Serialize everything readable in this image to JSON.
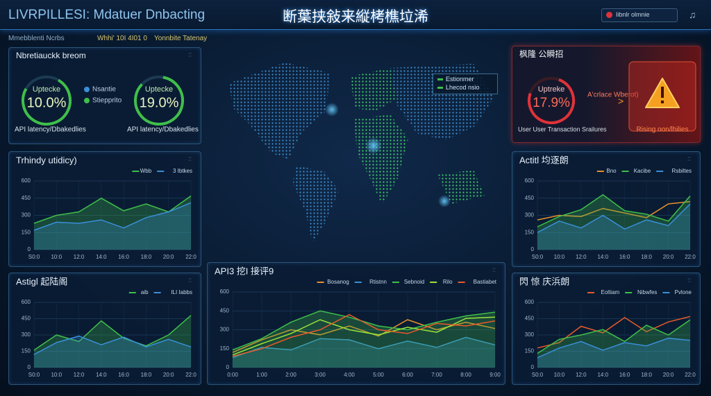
{
  "header": {
    "title": "LIVRPILLESI: Mdatuer Dnbacting",
    "center_title": "断葉挟敍来縦栲樵垃浠",
    "alert_label": "Iibnlr olmnie",
    "subtitles": [
      "Mmebblenti Ncrbs",
      "Whhi' 10I 4I01 0",
      "Yonnbite Tatenay"
    ]
  },
  "status_panel": {
    "title": "Nbretiauckk breom",
    "gauges": [
      {
        "label": "Uptecke",
        "value": "10.0%"
      },
      {
        "label": "Uptecke",
        "value": "19.0%"
      }
    ],
    "legend": [
      "Nsantie",
      "Stiepprito"
    ],
    "footers": [
      "API latency/Dbakedlies",
      "API latency/Dbakedlies"
    ]
  },
  "map": {
    "legend": [
      "Estionmer",
      "Lhecod nsio"
    ]
  },
  "alert_panel": {
    "title": "枫隆 公瞬招",
    "gauge": {
      "label": "Uptreke",
      "value": "17.9%"
    },
    "note": "A'crlace Wberot)",
    "footer": "User User Transaction Srailures",
    "alert": "Rising oon/lhilies"
  },
  "chart_data": [
    {
      "type": "line",
      "title": "Trhindy utidicy)",
      "ylim": [
        0,
        600
      ],
      "yticks": [
        0,
        150,
        300,
        450,
        600
      ],
      "grid": true,
      "categories": [
        "S0:0",
        "10:0",
        "12:0",
        "14:0",
        "16:0",
        "18:0",
        "20:0",
        "22:0"
      ],
      "series": [
        {
          "name": "Wbb",
          "color": "#3fbf4a",
          "area": true,
          "values": [
            230,
            300,
            330,
            450,
            340,
            400,
            330,
            470
          ]
        },
        {
          "name": "3 Ibtkes",
          "color": "#3a8fd8",
          "area": true,
          "values": [
            170,
            240,
            230,
            260,
            190,
            280,
            330,
            410
          ]
        }
      ]
    },
    {
      "type": "line",
      "title": "Astigl 起陆阁",
      "ylim": [
        0,
        600
      ],
      "yticks": [
        0,
        150,
        300,
        450,
        600
      ],
      "grid": true,
      "categories": [
        "S0:0",
        "10:0",
        "12:0",
        "14:0",
        "16:0",
        "18:0",
        "20:0",
        "22:0"
      ],
      "series": [
        {
          "name": "aib",
          "color": "#3fbf4a",
          "area": true,
          "values": [
            160,
            300,
            240,
            430,
            270,
            200,
            300,
            480
          ]
        },
        {
          "name": "ILI Iabbs",
          "color": "#3a8fd8",
          "area": true,
          "values": [
            120,
            230,
            290,
            210,
            280,
            190,
            260,
            190
          ]
        }
      ]
    },
    {
      "type": "line",
      "title": "API3 挖I 接评9",
      "ylim": [
        0,
        600
      ],
      "yticks": [
        0,
        150,
        300,
        450,
        600
      ],
      "grid": true,
      "categories": [
        "0:00",
        "1:00",
        "2:00",
        "3:00",
        "4:00",
        "5:00",
        "6:00",
        "7:00",
        "8:00",
        "9:00"
      ],
      "series": [
        {
          "name": "Bosanog",
          "color": "#e8902a",
          "area": false,
          "values": [
            120,
            220,
            300,
            260,
            330,
            250,
            380,
            300,
            360,
            310
          ]
        },
        {
          "name": "Rtistnn",
          "color": "#3a8fd8",
          "area": true,
          "values": [
            80,
            160,
            140,
            230,
            220,
            150,
            210,
            160,
            240,
            180
          ]
        },
        {
          "name": "Sebnoid",
          "color": "#3fbf4a",
          "area": true,
          "values": [
            140,
            230,
            360,
            450,
            400,
            330,
            300,
            360,
            410,
            440
          ]
        },
        {
          "name": "Rilo",
          "color": "#9be33a",
          "area": false,
          "values": [
            100,
            190,
            270,
            380,
            300,
            260,
            320,
            280,
            390,
            400
          ]
        },
        {
          "name": "Bastiabet",
          "color": "#e85a2a",
          "area": false,
          "values": [
            90,
            150,
            240,
            300,
            420,
            300,
            270,
            350,
            330,
            370
          ]
        }
      ]
    },
    {
      "type": "line",
      "title": "Actitl 均逐朗",
      "ylim": [
        0,
        600
      ],
      "yticks": [
        0,
        150,
        300,
        450,
        600
      ],
      "grid": true,
      "categories": [
        "S0:0",
        "10:0",
        "12:0",
        "14:0",
        "16:0",
        "18:0",
        "20:0",
        "22:0"
      ],
      "series": [
        {
          "name": "Bno",
          "color": "#e8902a",
          "area": false,
          "values": [
            260,
            300,
            290,
            360,
            320,
            280,
            400,
            420
          ]
        },
        {
          "name": "Kacibe",
          "color": "#3fbf4a",
          "area": true,
          "values": [
            200,
            290,
            350,
            480,
            340,
            310,
            250,
            470
          ]
        },
        {
          "name": "Rsbiltes",
          "color": "#3a8fd8",
          "area": true,
          "values": [
            150,
            250,
            190,
            300,
            180,
            260,
            210,
            400
          ]
        }
      ]
    },
    {
      "type": "line",
      "title": "閃 惊 庆浜朗",
      "ylim": [
        0,
        600
      ],
      "yticks": [
        0,
        150,
        300,
        450,
        600
      ],
      "grid": true,
      "categories": [
        "S0:0",
        "10:0",
        "12:0",
        "14:0",
        "16:0",
        "18:0",
        "20:0",
        "22:0"
      ],
      "series": [
        {
          "name": "Eoltiam",
          "color": "#e85a2a",
          "area": false,
          "values": [
            180,
            230,
            380,
            320,
            460,
            330,
            420,
            470
          ]
        },
        {
          "name": "Nibwfes",
          "color": "#3fbf4a",
          "area": true,
          "values": [
            130,
            260,
            300,
            350,
            240,
            390,
            300,
            440
          ]
        },
        {
          "name": "Pvlone",
          "color": "#3a8fd8",
          "area": true,
          "values": [
            90,
            180,
            240,
            160,
            230,
            200,
            270,
            250
          ]
        }
      ]
    }
  ]
}
